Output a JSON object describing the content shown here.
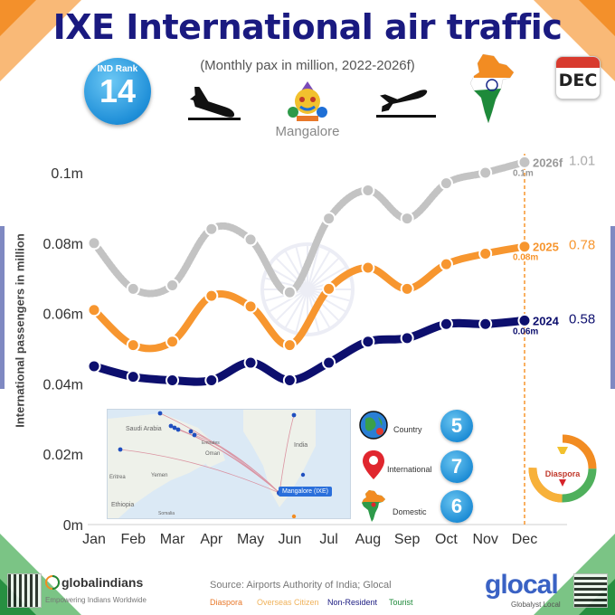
{
  "header": {
    "title": "IXE International air traffic",
    "subtitle": "(Monthly pax in million, 2022-2026f)",
    "rank_label": "IND Rank",
    "rank_value": "14",
    "city": "Mangalore",
    "calendar_text": "DEC"
  },
  "stats": [
    {
      "label": "Country",
      "value": "5",
      "icon": "globe-icon"
    },
    {
      "label": "International",
      "value": "7",
      "icon": "location-pin-icon"
    },
    {
      "label": "Domestic",
      "value": "6",
      "icon": "india-map-icon"
    }
  ],
  "map": {
    "labels": [
      "Saudi Arabia",
      "India",
      "Oman",
      "Yemen",
      "Eritrea",
      "Ethiopia",
      "Emirates",
      "Somalia"
    ],
    "airport_tag": "Mangalore (IXE)"
  },
  "diaspora_label": "Diaspora",
  "footer": {
    "source": "Source: Airports Authority of India; Glocal",
    "segments": [
      {
        "label": "Diaspora",
        "color": "#e8782a"
      },
      {
        "label": "Overseas Citizen",
        "color": "#f0b25a"
      },
      {
        "label": "Non-Resident",
        "color": "#1a1a80"
      },
      {
        "label": "Tourist",
        "color": "#1e8a3a"
      }
    ],
    "brand_left": "globalindians",
    "brand_left_tagline": "Empowering Indians Worldwide",
    "brand_right": "glocal",
    "brand_right_tagline": "Globalyst Local"
  },
  "colors": {
    "series_2024": "#0d0f6e",
    "series_2025": "#f7962f",
    "series_2026f": "#c3c3c3",
    "title": "#1a1a80",
    "accent_blue": "#1f8fd8"
  },
  "chart_data": {
    "type": "line",
    "title": "IXE International air traffic",
    "subtitle": "(Monthly pax in million, 2022-2026f)",
    "ylabel": "International passengers in million",
    "xlabel": "",
    "categories": [
      "Jan",
      "Feb",
      "Mar",
      "Apr",
      "May",
      "Jun",
      "Jul",
      "Aug",
      "Sep",
      "Oct",
      "Nov",
      "Dec"
    ],
    "ylim": [
      0,
      0.1
    ],
    "yticks": [
      0,
      0.02,
      0.04,
      0.06,
      0.08,
      0.1
    ],
    "ytick_labels": [
      "0m",
      "0.02m",
      "0.04m",
      "0.06m",
      "0.08m",
      "0.1m"
    ],
    "grid": false,
    "series": [
      {
        "name": "2024",
        "values": [
          0.045,
          0.042,
          0.041,
          0.041,
          0.046,
          0.041,
          0.046,
          0.052,
          0.053,
          0.057,
          0.057,
          0.058
        ],
        "end_label": "0.06m",
        "total_label": "0.58"
      },
      {
        "name": "2025",
        "values": [
          0.061,
          0.051,
          0.052,
          0.065,
          0.062,
          0.051,
          0.067,
          0.073,
          0.067,
          0.074,
          0.077,
          0.079
        ],
        "end_label": "0.08m",
        "total_label": "0.78"
      },
      {
        "name": "2026f",
        "values": [
          0.08,
          0.067,
          0.068,
          0.084,
          0.081,
          0.066,
          0.087,
          0.095,
          0.087,
          0.097,
          0.1,
          0.103
        ],
        "end_label": "0.1m",
        "total_label": "1.01"
      }
    ]
  }
}
